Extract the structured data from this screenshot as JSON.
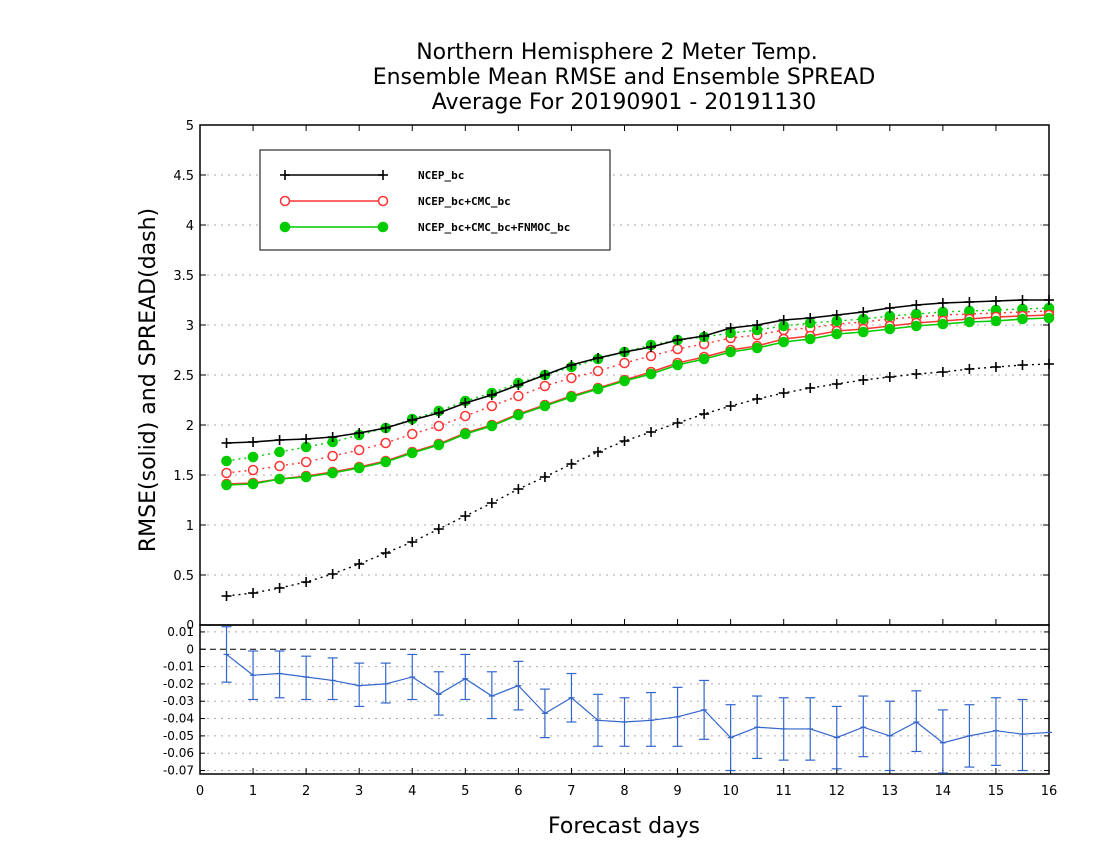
{
  "chart_data": [
    {
      "type": "line",
      "title": [
        "Northern Hemisphere 2 Meter Temp.",
        "Ensemble Mean RMSE and Ensemble SPREAD",
        "Average For 20190901 - 20191130"
      ],
      "xlabel": "Forecast days",
      "ylabel": "RMSE(solid) and SPREAD(dash)",
      "xlim": [
        0,
        16
      ],
      "ylim": [
        0,
        5
      ],
      "xticks": [
        "0",
        "1",
        "2",
        "3",
        "4",
        "5",
        "6",
        "7",
        "8",
        "9",
        "10",
        "11",
        "12",
        "13",
        "14",
        "15",
        "16"
      ],
      "yticks": [
        "0.5",
        "1",
        "1.5",
        "2",
        "2.5",
        "3",
        "3.5",
        "4",
        "4.5",
        "5"
      ],
      "top_tick_label": "5",
      "grid": true,
      "legend_position": "top-left",
      "x": [
        0.5,
        1,
        1.5,
        2,
        2.5,
        3,
        3.5,
        4,
        4.5,
        5,
        5.5,
        6,
        6.5,
        7,
        7.5,
        8,
        8.5,
        9,
        9.5,
        10,
        10.5,
        11,
        11.5,
        12,
        12.5,
        13,
        13.5,
        14,
        14.5,
        15,
        15.5,
        16
      ],
      "series": [
        {
          "name": "NCEP_bc",
          "color": "#000000",
          "marker": "plus",
          "rmse": [
            1.82,
            1.83,
            1.85,
            1.86,
            1.88,
            1.92,
            1.97,
            2.05,
            2.12,
            2.22,
            2.3,
            2.4,
            2.5,
            2.6,
            2.67,
            2.73,
            2.78,
            2.85,
            2.89,
            2.97,
            3.0,
            3.05,
            3.07,
            3.1,
            3.13,
            3.17,
            3.2,
            3.22,
            3.23,
            3.24,
            3.25,
            3.25
          ],
          "spread": [
            0.29,
            0.32,
            0.37,
            0.43,
            0.51,
            0.61,
            0.72,
            0.83,
            0.96,
            1.09,
            1.22,
            1.36,
            1.48,
            1.61,
            1.73,
            1.84,
            1.93,
            2.02,
            2.11,
            2.19,
            2.26,
            2.32,
            2.37,
            2.41,
            2.45,
            2.48,
            2.51,
            2.53,
            2.56,
            2.58,
            2.6,
            2.61
          ]
        },
        {
          "name": "NCEP_bc+CMC_bc",
          "color": "#ff3333",
          "marker": "open-circle",
          "rmse": [
            1.41,
            1.42,
            1.46,
            1.49,
            1.53,
            1.58,
            1.64,
            1.73,
            1.81,
            1.92,
            2.0,
            2.11,
            2.2,
            2.29,
            2.37,
            2.45,
            2.53,
            2.62,
            2.68,
            2.75,
            2.79,
            2.86,
            2.89,
            2.94,
            2.96,
            2.99,
            3.02,
            3.04,
            3.06,
            3.08,
            3.09,
            3.1
          ],
          "spread": [
            1.52,
            1.55,
            1.59,
            1.63,
            1.69,
            1.75,
            1.82,
            1.91,
            1.99,
            2.09,
            2.19,
            2.29,
            2.39,
            2.47,
            2.54,
            2.62,
            2.69,
            2.76,
            2.81,
            2.87,
            2.9,
            2.95,
            2.97,
            3.01,
            3.03,
            3.06,
            3.08,
            3.1,
            3.11,
            3.12,
            3.13,
            3.14
          ]
        },
        {
          "name": "NCEP_bc+CMC_bc+FNMOC_bc",
          "color": "#00cc00",
          "marker": "filled-circle",
          "rmse": [
            1.4,
            1.41,
            1.46,
            1.48,
            1.52,
            1.57,
            1.63,
            1.72,
            1.8,
            1.91,
            1.99,
            2.1,
            2.19,
            2.28,
            2.36,
            2.44,
            2.51,
            2.6,
            2.66,
            2.73,
            2.77,
            2.83,
            2.86,
            2.91,
            2.93,
            2.96,
            2.99,
            3.01,
            3.03,
            3.04,
            3.06,
            3.07
          ],
          "spread": [
            1.64,
            1.68,
            1.73,
            1.78,
            1.83,
            1.9,
            1.97,
            2.06,
            2.14,
            2.24,
            2.32,
            2.42,
            2.5,
            2.58,
            2.66,
            2.73,
            2.8,
            2.85,
            2.88,
            2.92,
            2.95,
            2.99,
            3.02,
            3.04,
            3.06,
            3.09,
            3.11,
            3.13,
            3.14,
            3.15,
            3.16,
            3.17
          ]
        }
      ]
    },
    {
      "type": "line",
      "xlim": [
        0,
        16
      ],
      "ylim": [
        -0.072,
        0.014
      ],
      "yticks": [
        "0.01",
        "0",
        "-0.01",
        "-0.02",
        "-0.03",
        "-0.04",
        "-0.05",
        "-0.06",
        "-0.07"
      ],
      "reference_line": 0,
      "color": "#3366cc",
      "x": [
        0.5,
        1,
        1.5,
        2,
        2.5,
        3,
        3.5,
        4,
        4.5,
        5,
        5.5,
        6,
        6.5,
        7,
        7.5,
        8,
        8.5,
        9,
        9.5,
        10,
        10.5,
        11,
        11.5,
        12,
        12.5,
        13,
        13.5,
        14,
        14.5,
        15,
        15.5,
        16
      ],
      "values": [
        -0.003,
        -0.015,
        -0.014,
        -0.016,
        -0.018,
        -0.021,
        -0.02,
        -0.016,
        -0.026,
        -0.017,
        -0.027,
        -0.021,
        -0.037,
        -0.028,
        -0.041,
        -0.042,
        -0.041,
        -0.039,
        -0.035,
        -0.051,
        -0.045,
        -0.046,
        -0.046,
        -0.051,
        -0.045,
        -0.05,
        -0.042,
        -0.054,
        -0.05,
        -0.047,
        -0.049,
        -0.048
      ],
      "error_low": [
        -0.019,
        -0.029,
        -0.028,
        -0.029,
        -0.029,
        -0.033,
        -0.031,
        -0.029,
        -0.038,
        -0.029,
        -0.04,
        -0.035,
        -0.051,
        -0.042,
        -0.056,
        -0.056,
        -0.056,
        -0.056,
        -0.052,
        -0.07,
        -0.063,
        -0.064,
        -0.064,
        -0.069,
        -0.062,
        -0.07,
        -0.059,
        -0.072,
        -0.068,
        -0.067,
        -0.07,
        null
      ],
      "error_high": [
        0.013,
        -0.001,
        -0.001,
        -0.004,
        -0.005,
        -0.008,
        -0.008,
        -0.003,
        -0.013,
        -0.003,
        -0.013,
        -0.007,
        -0.023,
        -0.014,
        -0.026,
        -0.028,
        -0.025,
        -0.022,
        -0.018,
        -0.032,
        -0.027,
        -0.028,
        -0.028,
        -0.033,
        -0.027,
        -0.03,
        -0.024,
        -0.035,
        -0.032,
        -0.028,
        -0.029,
        null
      ]
    }
  ]
}
